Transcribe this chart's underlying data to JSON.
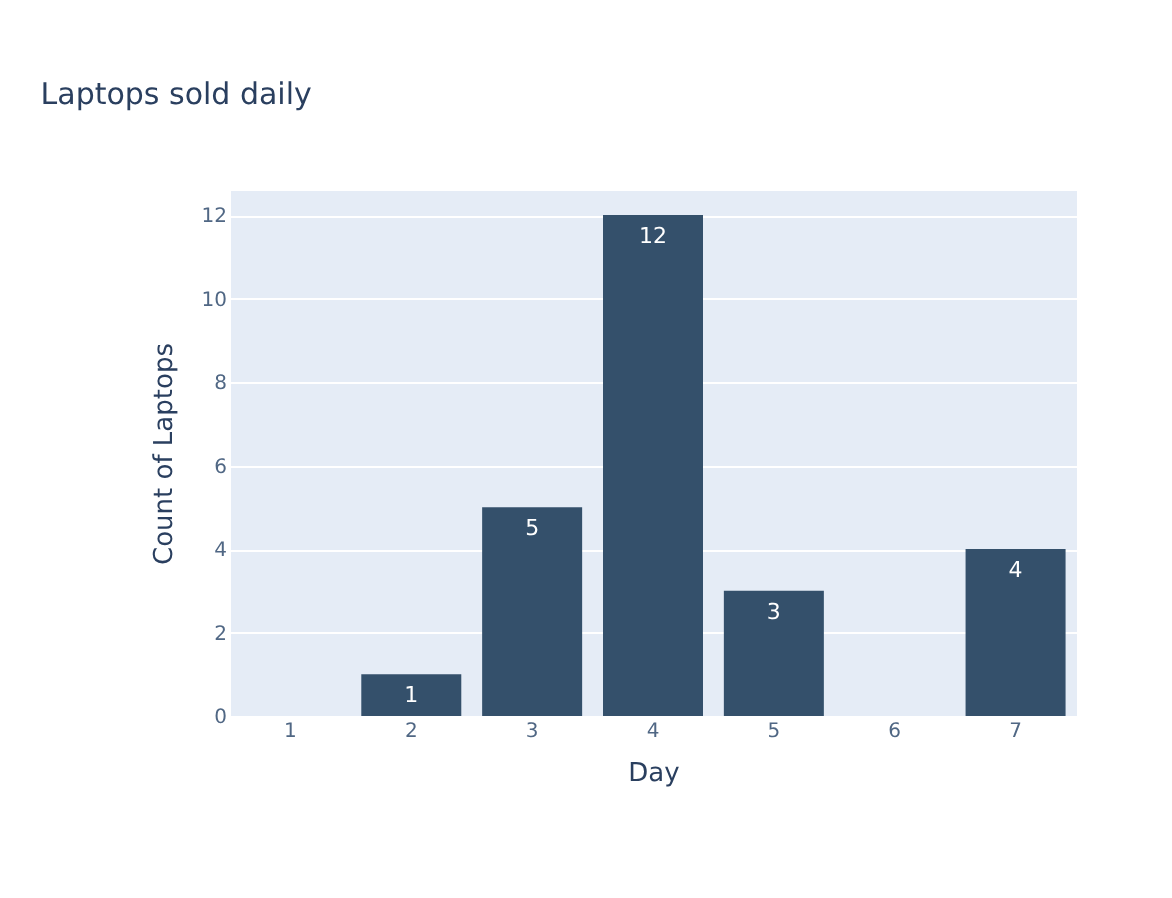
{
  "chart_data": {
    "type": "bar",
    "title": "Laptops sold daily",
    "xlabel": "Day",
    "ylabel": "Count of Laptops",
    "categories": [
      "1",
      "2",
      "3",
      "4",
      "5",
      "6",
      "7"
    ],
    "values": [
      0,
      1,
      5,
      12,
      3,
      0,
      4
    ],
    "value_labels": [
      null,
      "1",
      "5",
      "12",
      "3",
      null,
      "4"
    ],
    "color": "#34506b",
    "ylim": [
      0,
      12.6
    ],
    "yticks": [
      0,
      2,
      4,
      6,
      8,
      10,
      12
    ],
    "grid": "y"
  }
}
